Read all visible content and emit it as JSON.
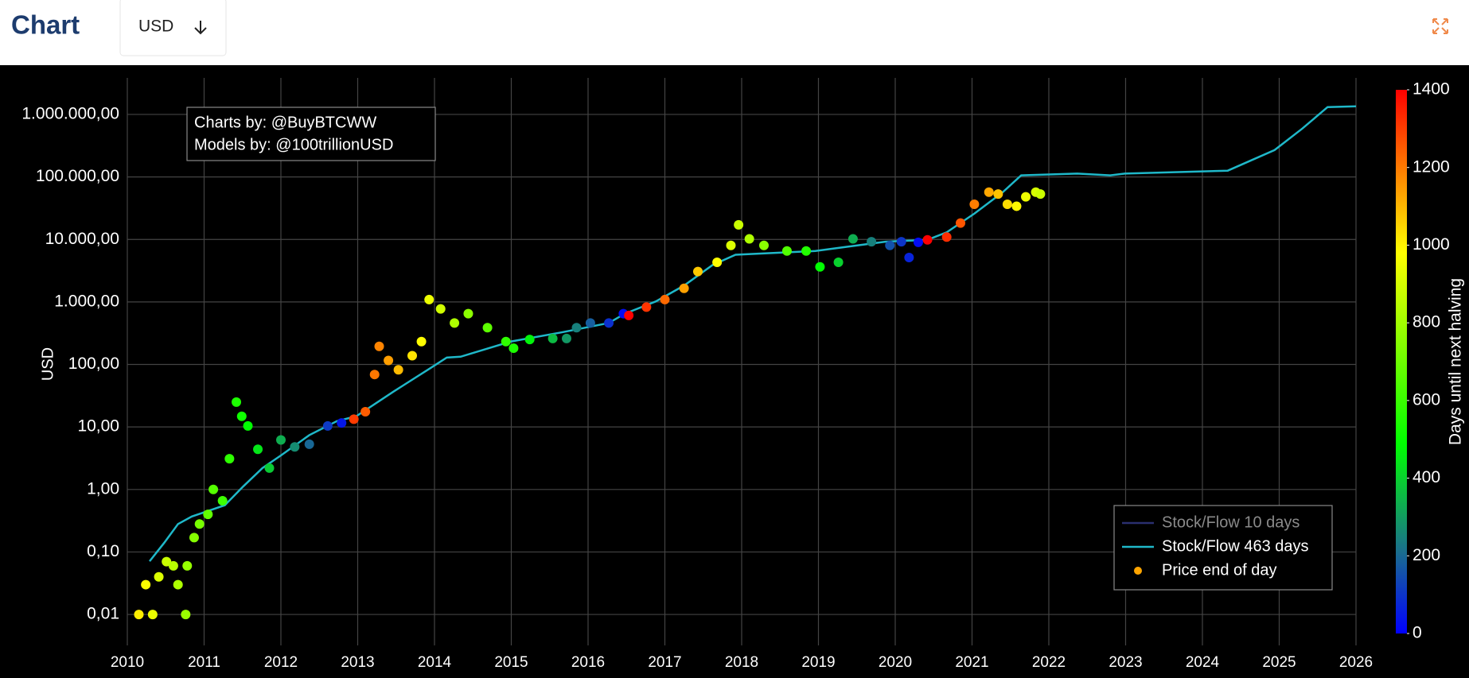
{
  "header": {
    "title": "Chart",
    "currency": "USD"
  },
  "chart_data": {
    "type": "scatter",
    "y_label": "USD",
    "log_y": true,
    "grid": true,
    "legend_position": "bottom-right",
    "annotation": [
      "Charts by: @BuyBTCWW",
      "Models by: @100trillionUSD"
    ],
    "xlim": [
      2010,
      2026
    ],
    "xticks": [
      2010,
      2011,
      2012,
      2013,
      2014,
      2015,
      2016,
      2017,
      2018,
      2019,
      2020,
      2021,
      2022,
      2023,
      2024,
      2025,
      2026
    ],
    "ylim": [
      0.0032,
      3840000
    ],
    "yticks": [
      {
        "value": 0.01,
        "label": "0,01"
      },
      {
        "value": 0.1,
        "label": "0,10"
      },
      {
        "value": 1,
        "label": "1,00"
      },
      {
        "value": 10,
        "label": "10,00"
      },
      {
        "value": 100,
        "label": "100,00"
      },
      {
        "value": 1000,
        "label": "1.000,00"
      },
      {
        "value": 10000,
        "label": "10.000,00"
      },
      {
        "value": 100000,
        "label": "100.000,00"
      },
      {
        "value": 1000000,
        "label": "1.000.000,00"
      }
    ],
    "colorbar": {
      "title": "Days until next halving",
      "lim": [
        0,
        1400
      ],
      "ticks": [
        0,
        200,
        400,
        600,
        800,
        1000,
        1200,
        1400
      ],
      "colorscale": [
        [
          0,
          "#0000ff"
        ],
        [
          0.15,
          "#1a6e8e"
        ],
        [
          0.35,
          "#00ff00"
        ],
        [
          0.7,
          "#ffff00"
        ],
        [
          0.85,
          "#ff8000"
        ],
        [
          1,
          "#ff0000"
        ]
      ]
    },
    "series": [
      {
        "name": "Stock/Flow 10 days",
        "color": "#2a2f70",
        "mode": "lines",
        "visible": false
      },
      {
        "name": "Stock/Flow 463 days",
        "color": "#1fb8c9",
        "mode": "lines",
        "x": [
          2010.29,
          2010.48,
          2010.66,
          2010.84,
          2011.09,
          2011.27,
          2011.51,
          2011.76,
          2012.0,
          2012.37,
          2012.73,
          2012.98,
          2013.47,
          2013.95,
          2014.16,
          2014.34,
          2014.99,
          2015.66,
          2016.27,
          2016.48,
          2016.88,
          2017.25,
          2017.62,
          2017.92,
          2018.96,
          2019.32,
          2019.87,
          2020.42,
          2020.67,
          2021.03,
          2021.4,
          2021.64,
          2022.37,
          2022.8,
          2022.99,
          2024.33,
          2024.94,
          2025.3,
          2025.63,
          2026.0
        ],
        "values": [
          0.071,
          0.14,
          0.28,
          0.37,
          0.47,
          0.56,
          1.12,
          2.2,
          3.5,
          7.4,
          12.4,
          14.8,
          37,
          88,
          129,
          133,
          232,
          327,
          461,
          650,
          1016,
          1828,
          3890,
          5690,
          6530,
          7480,
          9200,
          9860,
          13000,
          25900,
          57000,
          106000,
          113000,
          106000,
          113000,
          126000,
          269000,
          593000,
          1310000,
          1350000
        ]
      },
      {
        "name": "Price end of day",
        "color": "#ffa500",
        "mode": "markers",
        "x": [
          2010.15,
          2010.24,
          2010.33,
          2010.41,
          2010.51,
          2010.6,
          2010.66,
          2010.76,
          2010.78,
          2010.87,
          2010.94,
          2011.05,
          2011.12,
          2011.24,
          2011.33,
          2011.42,
          2011.49,
          2011.57,
          2011.7,
          2011.85,
          2012.0,
          2012.18,
          2012.37,
          2012.61,
          2012.79,
          2012.95,
          2013.1,
          2013.22,
          2013.28,
          2013.4,
          2013.53,
          2013.71,
          2013.83,
          2013.93,
          2014.08,
          2014.26,
          2014.44,
          2014.69,
          2014.93,
          2015.03,
          2015.24,
          2015.54,
          2015.72,
          2015.85,
          2016.03,
          2016.27,
          2016.46,
          2016.53,
          2016.76,
          2017.0,
          2017.25,
          2017.43,
          2017.68,
          2017.86,
          2017.96,
          2018.1,
          2018.29,
          2018.59,
          2018.84,
          2019.02,
          2019.26,
          2019.45,
          2019.69,
          2019.93,
          2020.08,
          2020.18,
          2020.3,
          2020.42,
          2020.67,
          2020.85,
          2021.03,
          2021.22,
          2021.34,
          2021.46,
          2021.58,
          2021.7,
          2021.83,
          2021.89
        ],
        "values": [
          0.01,
          0.03,
          0.01,
          0.04,
          0.07,
          0.06,
          0.03,
          0.01,
          0.06,
          0.17,
          0.28,
          0.4,
          1.0,
          0.66,
          3.1,
          25,
          14.8,
          10.4,
          4.4,
          2.2,
          6.2,
          4.8,
          5.3,
          10.4,
          11.6,
          13.3,
          17.5,
          69,
          195,
          116,
          82,
          138,
          232,
          1090,
          773,
          461,
          650,
          388,
          232,
          182,
          251,
          260,
          260,
          388,
          461,
          461,
          650,
          607,
          828,
          1090,
          1650,
          3060,
          4310,
          8020,
          17100,
          10200,
          8020,
          6530,
          6530,
          3640,
          4310,
          10200,
          9200,
          8020,
          9200,
          5130,
          9000,
          9860,
          10900,
          18300,
          36500,
          57000,
          53200,
          36500,
          34000,
          48100,
          57000,
          53200
        ],
        "color_values": [
          1008,
          975,
          942,
          913,
          877,
          844,
          822,
          785,
          778,
          745,
          720,
          679,
          654,
          610,
          577,
          544,
          519,
          489,
          442,
          387,
          332,
          267,
          197,
          110,
          44,
          1304,
          1249,
          1205,
          1183,
          1140,
          1092,
          1026,
          983,
          946,
          891,
          825,
          760,
          668,
          581,
          544,
          468,
          358,
          292,
          245,
          179,
          91,
          22,
          1399,
          1315,
          1227,
          1136,
          1070,
          979,
          913,
          877,
          825,
          756,
          646,
          555,
          489,
          402,
          332,
          245,
          157,
          102,
          66,
          22,
          1417,
          1326,
          1260,
          1194,
          1125,
          1081,
          1037,
          993,
          950,
          902,
          880
        ]
      }
    ]
  }
}
